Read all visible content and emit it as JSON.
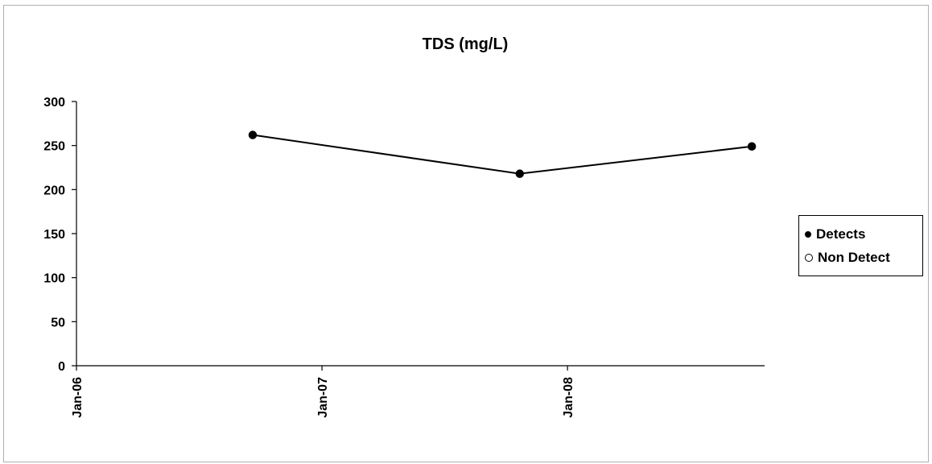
{
  "chart_data": {
    "type": "line",
    "title": "TDS (mg/L)",
    "xlabel": "",
    "ylabel": "",
    "ylim": [
      0,
      300
    ],
    "yticks": [
      "0",
      "50",
      "100",
      "150",
      "200",
      "250",
      "300"
    ],
    "xlim": [
      "2006-01-01",
      "2008-10-20"
    ],
    "xticks": [
      {
        "date": "2006-01-01",
        "label": "Jan-06"
      },
      {
        "date": "2007-01-01",
        "label": "Jan-07"
      },
      {
        "date": "2008-01-01",
        "label": "Jan-08"
      }
    ],
    "series": [
      {
        "name": "Detects",
        "marker": "filled-circle",
        "color": "#000000",
        "points": [
          {
            "x": "2006-09-20",
            "y": 262
          },
          {
            "x": "2007-10-22",
            "y": 218
          },
          {
            "x": "2008-10-01",
            "y": 249
          }
        ]
      },
      {
        "name": "Non Detect",
        "marker": "hollow-circle",
        "color": "#000000",
        "points": []
      }
    ],
    "legend": {
      "position": "right",
      "items": [
        {
          "label": "Detects",
          "marker": "filled-circle"
        },
        {
          "label": "Non Detect",
          "marker": "hollow-circle"
        }
      ]
    },
    "grid": false
  }
}
